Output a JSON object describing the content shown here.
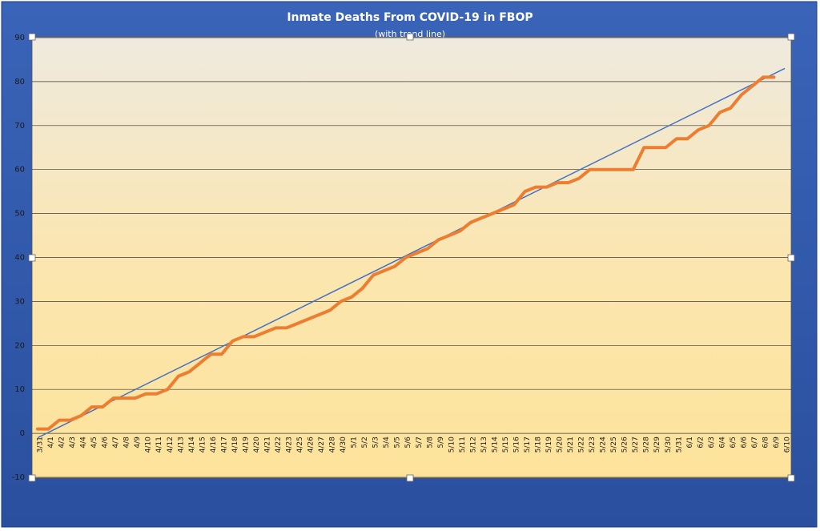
{
  "chart_data": {
    "type": "line",
    "title": "Inmate Deaths From COVID-19 in FBOP",
    "subtitle": "(with trend line)",
    "categories": [
      "3/31",
      "4/1",
      "4/2",
      "4/3",
      "4/4",
      "4/5",
      "4/6",
      "4/7",
      "4/8",
      "4/9",
      "4/10",
      "4/11",
      "4/12",
      "4/13",
      "4/14",
      "4/15",
      "4/16",
      "4/17",
      "4/18",
      "4/19",
      "4/20",
      "4/21",
      "4/22",
      "4/23",
      "4/25",
      "4/26",
      "4/27",
      "4/28",
      "4/30",
      "5/1",
      "5/2",
      "5/3",
      "5/4",
      "5/5",
      "5/6",
      "5/7",
      "5/8",
      "5/9",
      "5/10",
      "5/11",
      "5/12",
      "5/13",
      "5/14",
      "5/15",
      "5/16",
      "5/17",
      "5/18",
      "5/19",
      "5/20",
      "5/21",
      "5/22",
      "5/23",
      "5/24",
      "5/25",
      "5/26",
      "5/27",
      "5/28",
      "5/29",
      "5/30",
      "5/31",
      "6/1",
      "6/2",
      "6/3",
      "6/4",
      "6/5",
      "6/6",
      "6/7",
      "6/8",
      "6/9",
      "6/10"
    ],
    "series": [
      {
        "color": "#ed7d31",
        "values": [
          1,
          1,
          3,
          3,
          4,
          6,
          6,
          8,
          8,
          8,
          9,
          9,
          10,
          13,
          14,
          16,
          18,
          18,
          21,
          22,
          22,
          23,
          24,
          24,
          25,
          26,
          27,
          28,
          30,
          31,
          33,
          36,
          37,
          38,
          40,
          41,
          42,
          44,
          45,
          46,
          48,
          49,
          50,
          51,
          52,
          55,
          56,
          56,
          57,
          57,
          58,
          60,
          60,
          60,
          60,
          60,
          65,
          65,
          65,
          67,
          67,
          69,
          70,
          73,
          74,
          77,
          79,
          81,
          81,
          null
        ]
      }
    ],
    "trendline": {
      "color": "#4472c4",
      "values": [
        -1,
        83
      ]
    },
    "ylim": [
      -10,
      90
    ],
    "yticks": [
      -10,
      0,
      10,
      20,
      30,
      40,
      50,
      60,
      70,
      80,
      90
    ],
    "grid": true
  }
}
